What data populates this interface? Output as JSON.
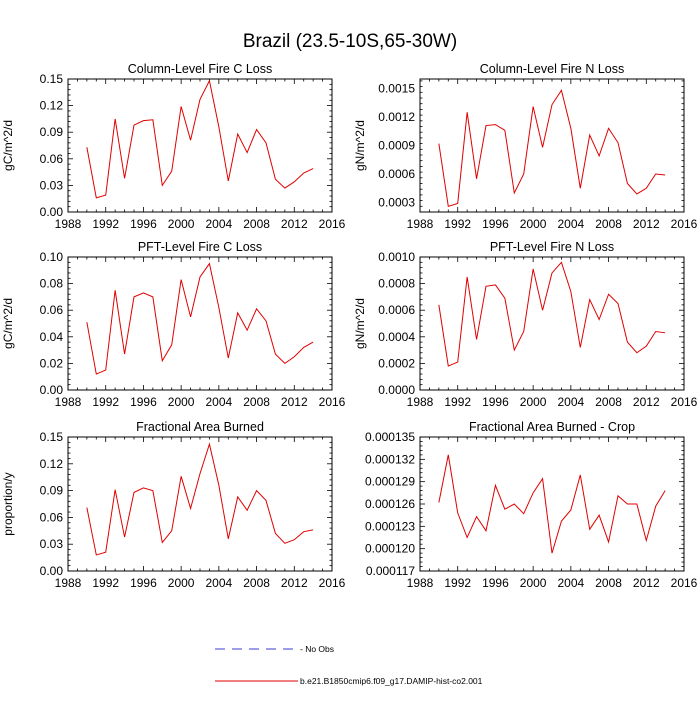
{
  "figure": {
    "title": "Brazil (23.5-10S,65-30W)",
    "legend": [
      {
        "label": "- No Obs",
        "color": "#3b3bd6",
        "style": "dashed"
      },
      {
        "label": "b.e21.B1850cmip6.f09_g17.DAMIP-hist-co2.001",
        "color": "#e00000",
        "style": "solid"
      }
    ],
    "line_color": "#e00000"
  },
  "chart_data": [
    {
      "type": "line",
      "title": "Column-Level Fire C Loss",
      "ylabel": "gC/m^2/d",
      "xlim": [
        1988,
        2016
      ],
      "ylim": [
        0,
        0.15
      ],
      "xticks": [
        1988,
        1992,
        1996,
        2000,
        2004,
        2008,
        2012,
        2016
      ],
      "yticks": [
        "0.00",
        "0.03",
        "0.06",
        "0.09",
        "0.12",
        "0.15"
      ],
      "x": [
        1990,
        1991,
        1992,
        1993,
        1994,
        1995,
        1996,
        1997,
        1998,
        1999,
        2000,
        2001,
        2002,
        2003,
        2004,
        2005,
        2006,
        2007,
        2008,
        2009,
        2010,
        2011,
        2012,
        2013,
        2014
      ],
      "series": [
        {
          "values": [
            0.073,
            0.016,
            0.019,
            0.105,
            0.038,
            0.098,
            0.103,
            0.104,
            0.03,
            0.046,
            0.119,
            0.081,
            0.127,
            0.148,
            0.096,
            0.035,
            0.088,
            0.067,
            0.093,
            0.078,
            0.037,
            0.027,
            0.034,
            0.044,
            0.049
          ]
        }
      ]
    },
    {
      "type": "line",
      "title": "Column-Level Fire N Loss",
      "ylabel": "gN/m^2/d",
      "xlim": [
        1988,
        2016
      ],
      "ylim": [
        0.0002,
        0.0016
      ],
      "xticks": [
        1988,
        1992,
        1996,
        2000,
        2004,
        2008,
        2012,
        2016
      ],
      "yticks": [
        "0.0003",
        "0.0006",
        "0.0009",
        "0.0012",
        "0.0015"
      ],
      "x": [
        1990,
        1991,
        1992,
        1993,
        1994,
        1995,
        1996,
        1997,
        1998,
        1999,
        2000,
        2001,
        2002,
        2003,
        2004,
        2005,
        2006,
        2007,
        2008,
        2009,
        2010,
        2011,
        2012,
        2013,
        2014
      ],
      "series": [
        {
          "values": [
            0.00092,
            0.00026,
            0.00029,
            0.00125,
            0.00055,
            0.00111,
            0.00112,
            0.00106,
            0.0004,
            0.0006,
            0.00131,
            0.00088,
            0.00133,
            0.00148,
            0.00108,
            0.00045,
            0.00101,
            0.00079,
            0.00108,
            0.00093,
            0.0005,
            0.00039,
            0.00045,
            0.0006,
            0.00059
          ]
        }
      ]
    },
    {
      "type": "line",
      "title": "PFT-Level Fire C Loss",
      "ylabel": "gC/m^2/d",
      "xlim": [
        1988,
        2016
      ],
      "ylim": [
        0,
        0.1
      ],
      "xticks": [
        1988,
        1992,
        1996,
        2000,
        2004,
        2008,
        2012,
        2016
      ],
      "yticks": [
        "0.00",
        "0.02",
        "0.04",
        "0.06",
        "0.08",
        "0.10"
      ],
      "x": [
        1990,
        1991,
        1992,
        1993,
        1994,
        1995,
        1996,
        1997,
        1998,
        1999,
        2000,
        2001,
        2002,
        2003,
        2004,
        2005,
        2006,
        2007,
        2008,
        2009,
        2010,
        2011,
        2012,
        2013,
        2014
      ],
      "series": [
        {
          "values": [
            0.051,
            0.012,
            0.015,
            0.075,
            0.027,
            0.07,
            0.073,
            0.07,
            0.022,
            0.034,
            0.083,
            0.055,
            0.085,
            0.095,
            0.062,
            0.024,
            0.058,
            0.045,
            0.061,
            0.052,
            0.027,
            0.02,
            0.025,
            0.032,
            0.036
          ]
        }
      ]
    },
    {
      "type": "line",
      "title": "PFT-Level Fire N Loss",
      "ylabel": "gN/m^2/d",
      "xlim": [
        1988,
        2016
      ],
      "ylim": [
        0,
        0.001
      ],
      "xticks": [
        1988,
        1992,
        1996,
        2000,
        2004,
        2008,
        2012,
        2016
      ],
      "yticks": [
        "0.0000",
        "0.0002",
        "0.0004",
        "0.0006",
        "0.0008",
        "0.0010"
      ],
      "x": [
        1990,
        1991,
        1992,
        1993,
        1994,
        1995,
        1996,
        1997,
        1998,
        1999,
        2000,
        2001,
        2002,
        2003,
        2004,
        2005,
        2006,
        2007,
        2008,
        2009,
        2010,
        2011,
        2012,
        2013,
        2014
      ],
      "series": [
        {
          "values": [
            0.00064,
            0.00018,
            0.00021,
            0.00085,
            0.00038,
            0.00078,
            0.00079,
            0.00069,
            0.0003,
            0.00044,
            0.00091,
            0.0006,
            0.00088,
            0.00096,
            0.00074,
            0.00032,
            0.00068,
            0.00053,
            0.00072,
            0.00065,
            0.00036,
            0.00028,
            0.00033,
            0.00044,
            0.00043
          ]
        }
      ]
    },
    {
      "type": "line",
      "title": "Fractional Area Burned",
      "ylabel": "proportion/y",
      "xlim": [
        1988,
        2016
      ],
      "ylim": [
        0,
        0.15
      ],
      "xticks": [
        1988,
        1992,
        1996,
        2000,
        2004,
        2008,
        2012,
        2016
      ],
      "yticks": [
        "0.00",
        "0.03",
        "0.06",
        "0.09",
        "0.12",
        "0.15"
      ],
      "x": [
        1990,
        1991,
        1992,
        1993,
        1994,
        1995,
        1996,
        1997,
        1998,
        1999,
        2000,
        2001,
        2002,
        2003,
        2004,
        2005,
        2006,
        2007,
        2008,
        2009,
        2010,
        2011,
        2012,
        2013,
        2014
      ],
      "series": [
        {
          "values": [
            0.071,
            0.018,
            0.021,
            0.091,
            0.038,
            0.088,
            0.093,
            0.09,
            0.032,
            0.045,
            0.106,
            0.07,
            0.109,
            0.142,
            0.096,
            0.036,
            0.083,
            0.068,
            0.09,
            0.079,
            0.042,
            0.031,
            0.035,
            0.044,
            0.046
          ]
        }
      ]
    },
    {
      "type": "line",
      "title": "Fractional Area Burned - Crop",
      "ylabel": "",
      "xlim": [
        1988,
        2016
      ],
      "ylim": [
        0.000117,
        0.000135
      ],
      "xticks": [
        1988,
        1992,
        1996,
        2000,
        2004,
        2008,
        2012,
        2016
      ],
      "yticks": [
        "0.000117",
        "0.000120",
        "0.000123",
        "0.000126",
        "0.000129",
        "0.000132",
        "0.000135"
      ],
      "x": [
        1990,
        1991,
        1992,
        1993,
        1994,
        1995,
        1996,
        1997,
        1998,
        1999,
        2000,
        2001,
        2002,
        2003,
        2004,
        2005,
        2006,
        2007,
        2008,
        2009,
        2010,
        2011,
        2012,
        2013,
        2014
      ],
      "series": [
        {
          "values": [
            0.0001262,
            0.0001326,
            0.0001248,
            0.0001215,
            0.0001243,
            0.0001224,
            0.0001285,
            0.0001253,
            0.000126,
            0.0001247,
            0.0001275,
            0.0001294,
            0.0001194,
            0.0001237,
            0.0001252,
            0.0001299,
            0.0001226,
            0.0001245,
            0.0001209,
            0.0001271,
            0.000126,
            0.000126,
            0.0001211,
            0.0001257,
            0.0001278
          ]
        }
      ]
    }
  ]
}
